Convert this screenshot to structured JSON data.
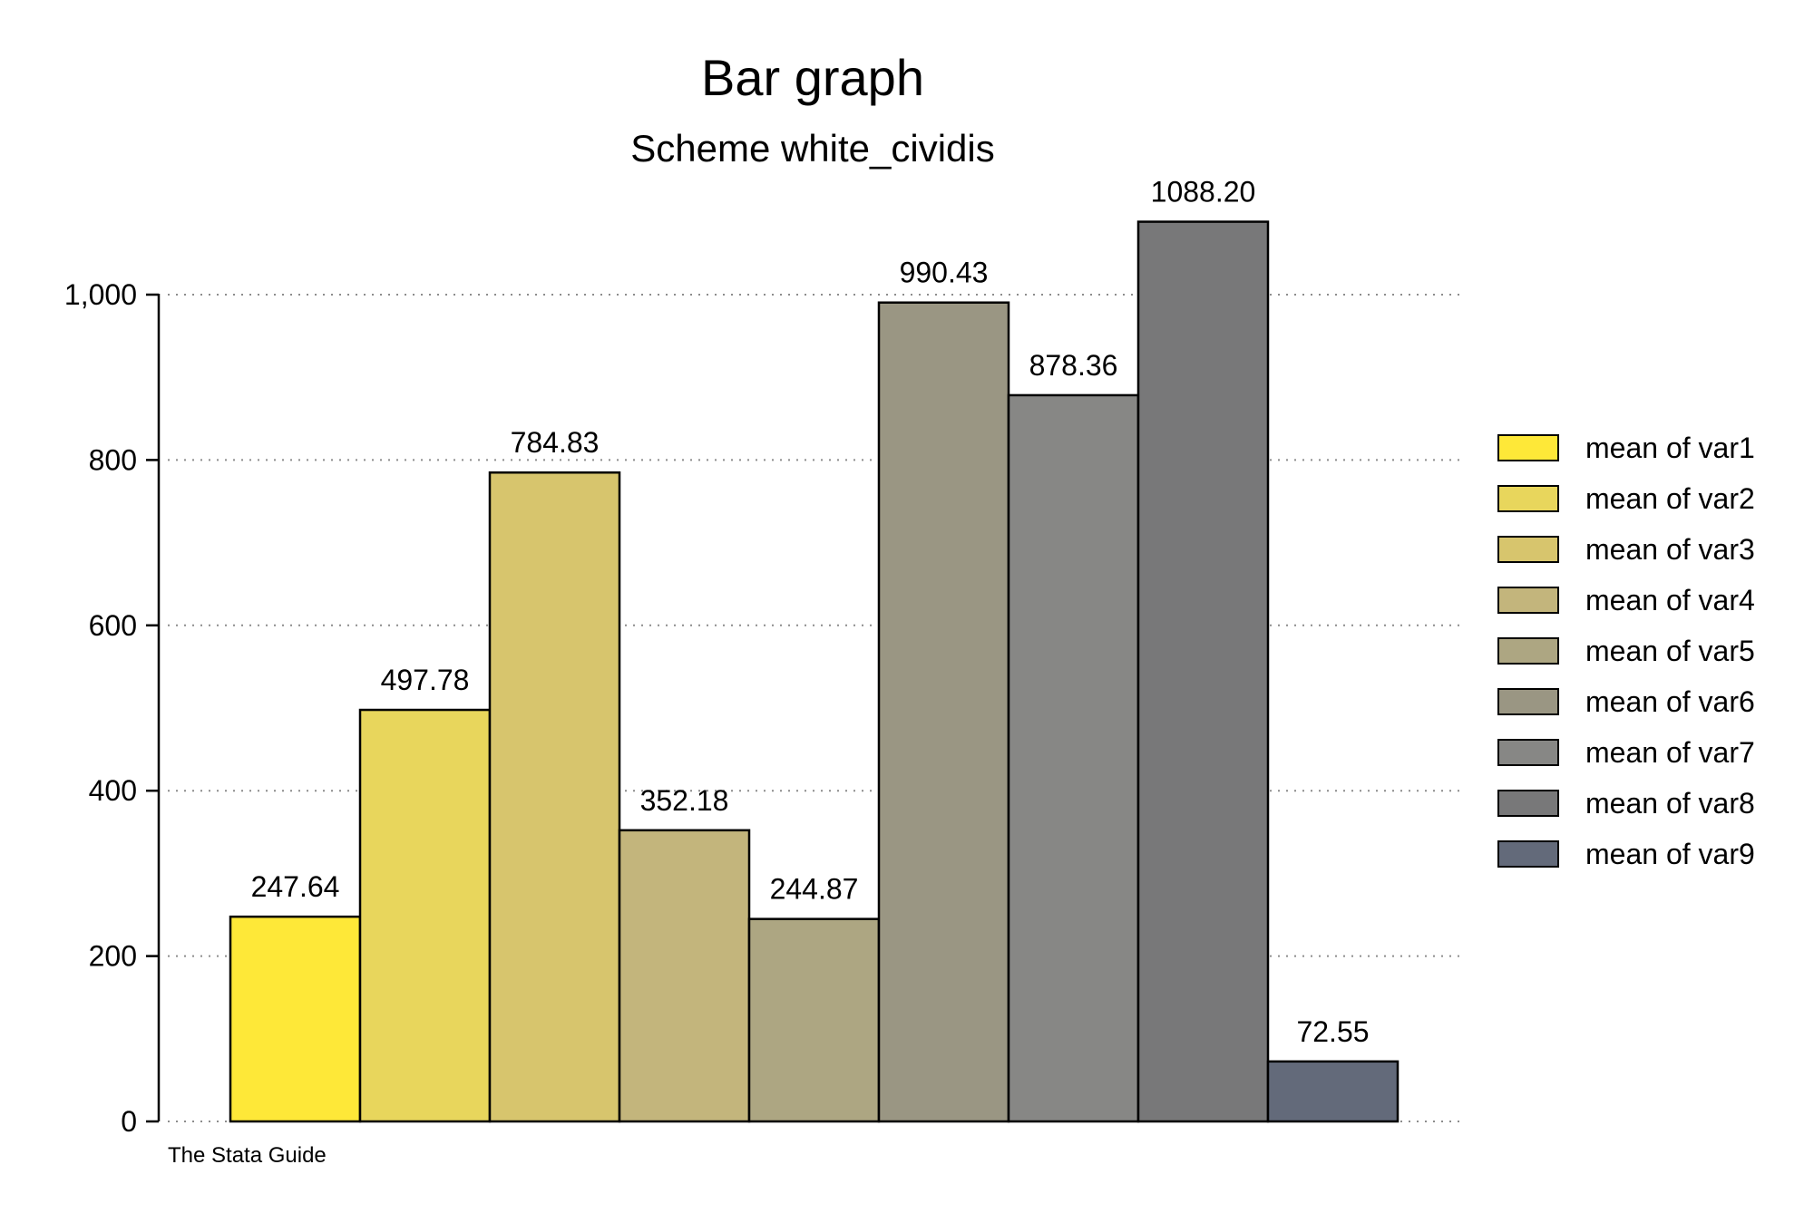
{
  "chart_data": {
    "type": "bar",
    "title": "Bar graph",
    "subtitle": "Scheme white_cividis",
    "note": "The Stata Guide",
    "xlabel": "",
    "ylabel": "",
    "ylim": [
      0,
      1100
    ],
    "yticks": [
      0,
      200,
      400,
      600,
      800,
      1000
    ],
    "ytick_labels": [
      "0",
      "200",
      "400",
      "600",
      "800",
      "1,000"
    ],
    "grid": true,
    "legend_position": "right",
    "series": [
      {
        "name": "mean of var1",
        "value": 247.64,
        "label": "247.64",
        "color": "#fee838"
      },
      {
        "name": "mean of var2",
        "value": 497.78,
        "label": "497.78",
        "color": "#e8d65c"
      },
      {
        "name": "mean of var3",
        "value": 784.83,
        "label": "784.83",
        "color": "#d7c56d"
      },
      {
        "name": "mean of var4",
        "value": 352.18,
        "label": "352.18",
        "color": "#c3b57c"
      },
      {
        "name": "mean of var5",
        "value": 244.87,
        "label": "244.87",
        "color": "#ada682"
      },
      {
        "name": "mean of var6",
        "value": 990.43,
        "label": "990.43",
        "color": "#9a9683"
      },
      {
        "name": "mean of var7",
        "value": 878.36,
        "label": "878.36",
        "color": "#878785"
      },
      {
        "name": "mean of var8",
        "value": 1088.2,
        "label": "1088.20",
        "color": "#787879"
      },
      {
        "name": "mean of var9",
        "value": 72.55,
        "label": "72.55",
        "color": "#636a7a"
      }
    ]
  }
}
